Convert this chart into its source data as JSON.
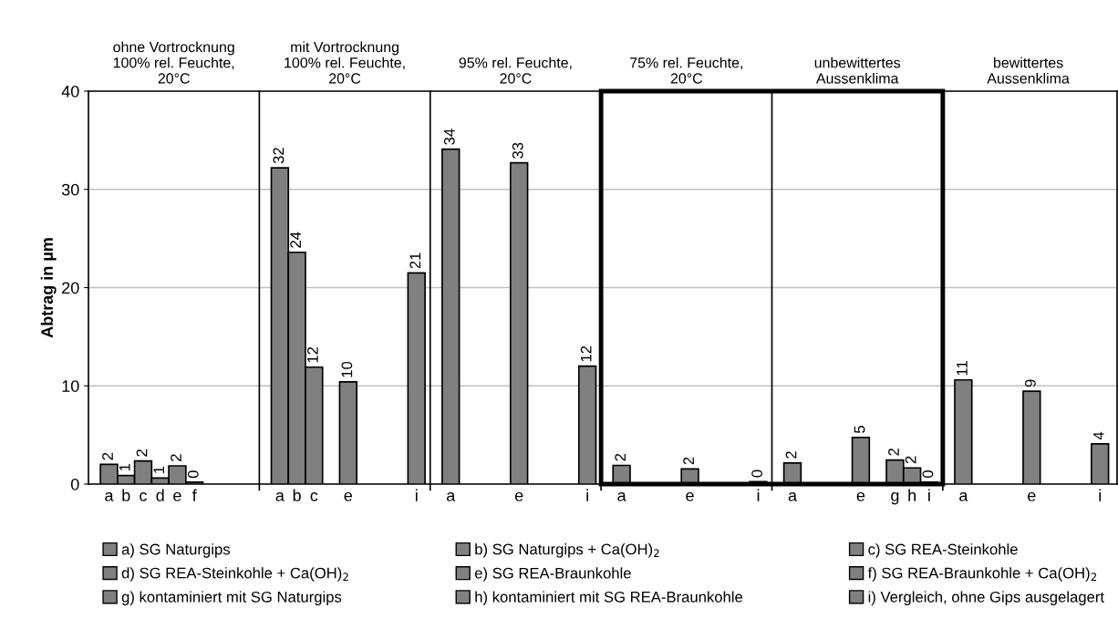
{
  "chart_data": {
    "type": "bar",
    "ylabel": "Abtrag in µm",
    "ylim": [
      0,
      40
    ],
    "yticks": [
      0,
      10,
      20,
      30,
      40
    ],
    "grid": "y",
    "legend": "bottom",
    "annotations": [
      "ohne Vortrocknung\n100% rel. Feuchte,\n20°C",
      "mit Vortrocknung\n100% rel. Feuchte,\n20°C",
      "95% rel. Feuchte,\n20°C",
      "75% rel. Feuchte,\n20°C",
      "unbewittertes\nAussenklima",
      "bewittertes\nAussenklima"
    ],
    "categories": [
      "a",
      "b",
      "c",
      "d",
      "e",
      "f",
      null,
      null,
      null,
      null,
      "a",
      "b",
      "c",
      null,
      "e",
      null,
      null,
      null,
      "i",
      null,
      "a",
      null,
      null,
      null,
      "e",
      null,
      null,
      null,
      "i",
      null,
      "a",
      null,
      null,
      null,
      "e",
      null,
      null,
      null,
      "i",
      null,
      "a",
      null,
      null,
      null,
      "e",
      null,
      "g",
      "h",
      "i",
      null,
      "a",
      null,
      null,
      null,
      "e",
      null,
      null,
      null,
      "i",
      null
    ],
    "series": [
      {
        "name": "a) SG Naturgips",
        "color": "#808080",
        "values": [
          2.0,
          null,
          null,
          null,
          null,
          null,
          null,
          null,
          null,
          null,
          32.2,
          null,
          null,
          null,
          null,
          null,
          null,
          null,
          null,
          null,
          34.1,
          null,
          null,
          null,
          null,
          null,
          null,
          null,
          null,
          null,
          1.9,
          null,
          null,
          null,
          null,
          null,
          null,
          null,
          null,
          null,
          2.15,
          null,
          null,
          null,
          null,
          null,
          null,
          null,
          null,
          null,
          10.6,
          null,
          null,
          null,
          null,
          null,
          null,
          null,
          null,
          null
        ],
        "value_labels": [
          "2",
          null,
          null,
          null,
          null,
          null,
          null,
          null,
          null,
          null,
          "32",
          null,
          null,
          null,
          null,
          null,
          null,
          null,
          null,
          null,
          "34",
          null,
          null,
          null,
          null,
          null,
          null,
          null,
          null,
          null,
          "2",
          null,
          null,
          null,
          null,
          null,
          null,
          null,
          null,
          null,
          "2",
          null,
          null,
          null,
          null,
          null,
          null,
          null,
          null,
          null,
          "11",
          null,
          null,
          null,
          null,
          null,
          null,
          null,
          null,
          null
        ]
      },
      {
        "name": "b) SG Naturgips + Ca(OH)$_{2}$",
        "color": "#808080",
        "values": [
          null,
          0.87,
          null,
          null,
          null,
          null,
          null,
          null,
          null,
          null,
          null,
          23.6,
          null,
          null,
          null,
          null,
          null,
          null,
          null,
          null,
          null,
          null,
          null,
          null,
          null,
          null,
          null,
          null,
          null,
          null,
          null,
          null,
          null,
          null,
          null,
          null,
          null,
          null,
          null,
          null,
          null,
          null,
          null,
          null,
          null,
          null,
          null,
          null,
          null,
          null,
          null,
          null,
          null,
          null,
          null,
          null,
          null,
          null,
          null,
          null
        ],
        "value_labels": [
          null,
          "1",
          null,
          null,
          null,
          null,
          null,
          null,
          null,
          null,
          null,
          "24",
          null,
          null,
          null,
          null,
          null,
          null,
          null,
          null,
          null,
          null,
          null,
          null,
          null,
          null,
          null,
          null,
          null,
          null,
          null,
          null,
          null,
          null,
          null,
          null,
          null,
          null,
          null,
          null,
          null,
          null,
          null,
          null,
          null,
          null,
          null,
          null,
          null,
          null,
          null,
          null,
          null,
          null,
          null,
          null,
          null,
          null,
          null,
          null
        ]
      },
      {
        "name": "c) SG REA-Steinkohle",
        "color": "#808080",
        "values": [
          null,
          null,
          2.35,
          null,
          null,
          null,
          null,
          null,
          null,
          null,
          null,
          null,
          11.9,
          null,
          null,
          null,
          null,
          null,
          null,
          null,
          null,
          null,
          null,
          null,
          null,
          null,
          null,
          null,
          null,
          null,
          null,
          null,
          null,
          null,
          null,
          null,
          null,
          null,
          null,
          null,
          null,
          null,
          null,
          null,
          null,
          null,
          null,
          null,
          null,
          null,
          null,
          null,
          null,
          null,
          null,
          null,
          null,
          null,
          null,
          null
        ],
        "value_labels": [
          null,
          null,
          "2",
          null,
          null,
          null,
          null,
          null,
          null,
          null,
          null,
          null,
          "12",
          null,
          null,
          null,
          null,
          null,
          null,
          null,
          null,
          null,
          null,
          null,
          null,
          null,
          null,
          null,
          null,
          null,
          null,
          null,
          null,
          null,
          null,
          null,
          null,
          null,
          null,
          null,
          null,
          null,
          null,
          null,
          null,
          null,
          null,
          null,
          null,
          null,
          null,
          null,
          null,
          null,
          null,
          null,
          null,
          null,
          null,
          null
        ]
      },
      {
        "name": "d) SG REA-Steinkohle + Ca(OH)$_{2}$",
        "color": "#808080",
        "values": [
          null,
          null,
          null,
          0.62,
          null,
          null,
          null,
          null,
          null,
          null,
          null,
          null,
          null,
          null,
          null,
          null,
          null,
          null,
          null,
          null,
          null,
          null,
          null,
          null,
          null,
          null,
          null,
          null,
          null,
          null,
          null,
          null,
          null,
          null,
          null,
          null,
          null,
          null,
          null,
          null,
          null,
          null,
          null,
          null,
          null,
          null,
          null,
          null,
          null,
          null,
          null,
          null,
          null,
          null,
          null,
          null,
          null,
          null,
          null,
          null
        ],
        "value_labels": [
          null,
          null,
          null,
          "1",
          null,
          null,
          null,
          null,
          null,
          null,
          null,
          null,
          null,
          null,
          null,
          null,
          null,
          null,
          null,
          null,
          null,
          null,
          null,
          null,
          null,
          null,
          null,
          null,
          null,
          null,
          null,
          null,
          null,
          null,
          null,
          null,
          null,
          null,
          null,
          null,
          null,
          null,
          null,
          null,
          null,
          null,
          null,
          null,
          null,
          null,
          null,
          null,
          null,
          null,
          null,
          null,
          null,
          null,
          null,
          null
        ]
      },
      {
        "name": "e) SG REA-Braunkohle",
        "color": "#808080",
        "values": [
          null,
          null,
          null,
          null,
          1.86,
          null,
          null,
          null,
          null,
          null,
          null,
          null,
          null,
          null,
          10.4,
          null,
          null,
          null,
          null,
          null,
          null,
          null,
          null,
          null,
          32.7,
          null,
          null,
          null,
          null,
          null,
          null,
          null,
          null,
          null,
          1.55,
          null,
          null,
          null,
          null,
          null,
          null,
          null,
          null,
          null,
          4.75,
          null,
          null,
          null,
          null,
          null,
          null,
          null,
          null,
          null,
          9.45,
          null,
          null,
          null,
          null,
          null
        ],
        "value_labels": [
          null,
          null,
          null,
          null,
          "2",
          null,
          null,
          null,
          null,
          null,
          null,
          null,
          null,
          null,
          "10",
          null,
          null,
          null,
          null,
          null,
          null,
          null,
          null,
          null,
          "33",
          null,
          null,
          null,
          null,
          null,
          null,
          null,
          null,
          null,
          "2",
          null,
          null,
          null,
          null,
          null,
          null,
          null,
          null,
          null,
          "5",
          null,
          null,
          null,
          null,
          null,
          null,
          null,
          null,
          null,
          "9",
          null,
          null,
          null,
          null,
          null
        ]
      },
      {
        "name": "f) SG REA-Braunkohle + Ca(OH)$_{2}$",
        "color": "#808080",
        "values": [
          null,
          null,
          null,
          null,
          null,
          0.19,
          null,
          null,
          null,
          null,
          null,
          null,
          null,
          null,
          null,
          null,
          null,
          null,
          null,
          null,
          null,
          null,
          null,
          null,
          null,
          null,
          null,
          null,
          null,
          null,
          null,
          null,
          null,
          null,
          null,
          null,
          null,
          null,
          null,
          null,
          null,
          null,
          null,
          null,
          null,
          null,
          null,
          null,
          null,
          null,
          null,
          null,
          null,
          null,
          null,
          null,
          null,
          null,
          null,
          null
        ],
        "value_labels": [
          null,
          null,
          null,
          null,
          null,
          "0",
          null,
          null,
          null,
          null,
          null,
          null,
          null,
          null,
          null,
          null,
          null,
          null,
          null,
          null,
          null,
          null,
          null,
          null,
          null,
          null,
          null,
          null,
          null,
          null,
          null,
          null,
          null,
          null,
          null,
          null,
          null,
          null,
          null,
          null,
          null,
          null,
          null,
          null,
          null,
          null,
          null,
          null,
          null,
          null,
          null,
          null,
          null,
          null,
          null,
          null,
          null,
          null,
          null,
          null
        ]
      },
      {
        "name": "g) kontaminiert mit SG Naturgips",
        "color": "#808080",
        "values": [
          null,
          null,
          null,
          null,
          null,
          null,
          null,
          null,
          null,
          null,
          null,
          null,
          null,
          null,
          null,
          null,
          null,
          null,
          null,
          null,
          null,
          null,
          null,
          null,
          null,
          null,
          null,
          null,
          null,
          null,
          null,
          null,
          null,
          null,
          null,
          null,
          null,
          null,
          null,
          null,
          null,
          null,
          null,
          null,
          null,
          null,
          2.45,
          null,
          null,
          null,
          null,
          null,
          null,
          null,
          null,
          null,
          null,
          null,
          null,
          null
        ],
        "value_labels": [
          null,
          null,
          null,
          null,
          null,
          null,
          null,
          null,
          null,
          null,
          null,
          null,
          null,
          null,
          null,
          null,
          null,
          null,
          null,
          null,
          null,
          null,
          null,
          null,
          null,
          null,
          null,
          null,
          null,
          null,
          null,
          null,
          null,
          null,
          null,
          null,
          null,
          null,
          null,
          null,
          null,
          null,
          null,
          null,
          null,
          null,
          "2",
          null,
          null,
          null,
          null,
          null,
          null,
          null,
          null,
          null,
          null,
          null,
          null,
          null
        ]
      },
      {
        "name": "h) kontaminiert mit SG REA-Braunkohle",
        "color": "#808080",
        "values": [
          null,
          null,
          null,
          null,
          null,
          null,
          null,
          null,
          null,
          null,
          null,
          null,
          null,
          null,
          null,
          null,
          null,
          null,
          null,
          null,
          null,
          null,
          null,
          null,
          null,
          null,
          null,
          null,
          null,
          null,
          null,
          null,
          null,
          null,
          null,
          null,
          null,
          null,
          null,
          null,
          null,
          null,
          null,
          null,
          null,
          null,
          null,
          1.65,
          null,
          null,
          null,
          null,
          null,
          null,
          null,
          null,
          null,
          null,
          null,
          null
        ],
        "value_labels": [
          null,
          null,
          null,
          null,
          null,
          null,
          null,
          null,
          null,
          null,
          null,
          null,
          null,
          null,
          null,
          null,
          null,
          null,
          null,
          null,
          null,
          null,
          null,
          null,
          null,
          null,
          null,
          null,
          null,
          null,
          null,
          null,
          null,
          null,
          null,
          null,
          null,
          null,
          null,
          null,
          null,
          null,
          null,
          null,
          null,
          null,
          null,
          "2",
          null,
          null,
          null,
          null,
          null,
          null,
          null,
          null,
          null,
          null,
          null,
          null
        ]
      },
      {
        "name": "i) Vergleich, ohne Gips ausgelagert",
        "color": "#808080",
        "values": [
          null,
          null,
          null,
          null,
          null,
          null,
          null,
          null,
          null,
          null,
          null,
          null,
          null,
          null,
          null,
          null,
          null,
          null,
          21.5,
          null,
          null,
          null,
          null,
          null,
          null,
          null,
          null,
          null,
          12.0,
          null,
          null,
          null,
          null,
          null,
          null,
          null,
          null,
          null,
          0.25,
          null,
          null,
          null,
          null,
          null,
          null,
          null,
          null,
          null,
          0.2,
          null,
          null,
          null,
          null,
          null,
          null,
          null,
          null,
          null,
          4.1,
          null
        ],
        "value_labels": [
          null,
          null,
          null,
          null,
          null,
          null,
          null,
          null,
          null,
          null,
          null,
          null,
          null,
          null,
          null,
          null,
          null,
          null,
          "21",
          null,
          null,
          null,
          null,
          null,
          null,
          null,
          null,
          null,
          "12",
          null,
          null,
          null,
          null,
          null,
          null,
          null,
          null,
          null,
          "0",
          null,
          null,
          null,
          null,
          null,
          null,
          null,
          null,
          null,
          "0",
          null,
          null,
          null,
          null,
          null,
          null,
          null,
          null,
          null,
          "4",
          null
        ]
      }
    ]
  }
}
